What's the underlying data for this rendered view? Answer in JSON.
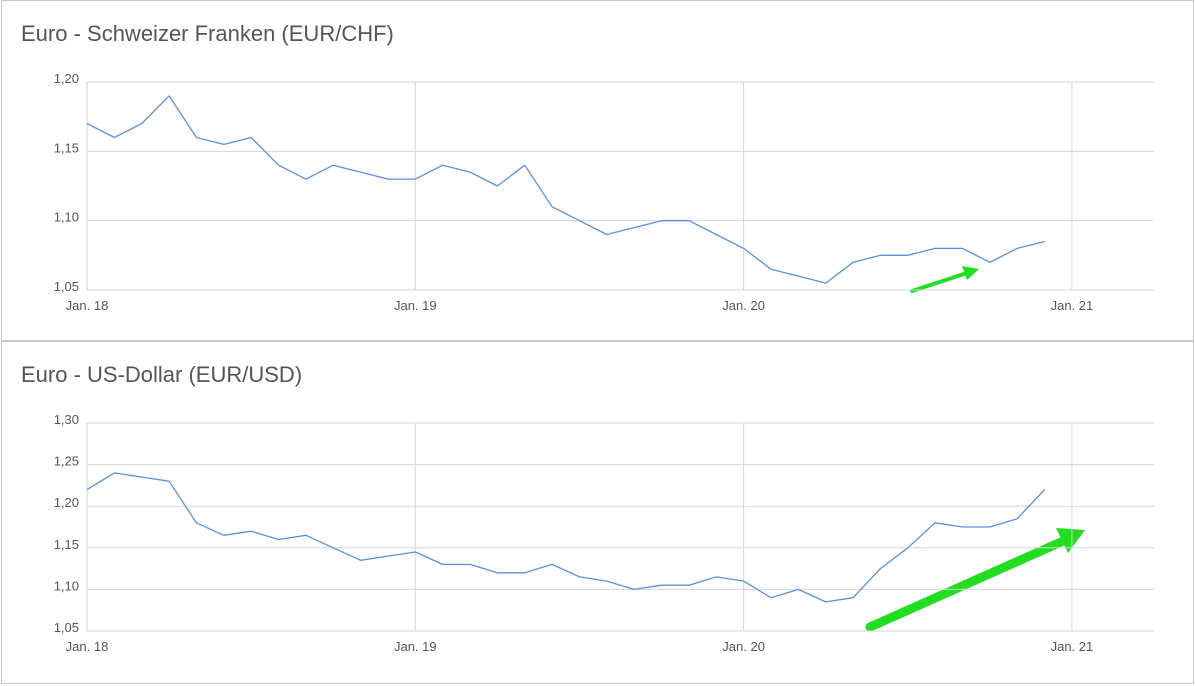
{
  "chart_data": [
    {
      "type": "line",
      "title": "Euro - Schweizer Franken (EUR/CHF)",
      "color": "#5b8fe0",
      "x": [
        "2018-01",
        "2018-02",
        "2018-03",
        "2018-04",
        "2018-05",
        "2018-06",
        "2018-07",
        "2018-08",
        "2018-09",
        "2018-10",
        "2018-11",
        "2018-12",
        "2019-01",
        "2019-02",
        "2019-03",
        "2019-04",
        "2019-05",
        "2019-06",
        "2019-07",
        "2019-08",
        "2019-09",
        "2019-10",
        "2019-11",
        "2019-12",
        "2020-01",
        "2020-02",
        "2020-03",
        "2020-04",
        "2020-05",
        "2020-06",
        "2020-07",
        "2020-08",
        "2020-09",
        "2020-10",
        "2020-11",
        "2020-12"
      ],
      "values": [
        1.17,
        1.16,
        1.17,
        1.19,
        1.16,
        1.155,
        1.16,
        1.14,
        1.13,
        1.14,
        1.135,
        1.13,
        1.13,
        1.14,
        1.135,
        1.125,
        1.14,
        1.11,
        1.1,
        1.09,
        1.095,
        1.1,
        1.1,
        1.09,
        1.08,
        1.065,
        1.06,
        1.055,
        1.07,
        1.075,
        1.075,
        1.08,
        1.08,
        1.07,
        1.08,
        1.085
      ],
      "xlim": [
        "2018-01",
        "2021-04"
      ],
      "xticks": [
        {
          "value": "2018-01",
          "label": "Jan. 18"
        },
        {
          "value": "2019-01",
          "label": "Jan. 19"
        },
        {
          "value": "2020-01",
          "label": "Jan. 20"
        },
        {
          "value": "2021-01",
          "label": "Jan. 21"
        }
      ],
      "ylim": [
        1.05,
        1.2
      ],
      "yticks": [
        {
          "value": 1.05,
          "label": "1,05"
        },
        {
          "value": 1.1,
          "label": "1,10"
        },
        {
          "value": 1.15,
          "label": "1,15"
        },
        {
          "value": 1.2,
          "label": "1,20"
        }
      ],
      "grid": true
    },
    {
      "type": "line",
      "title": "Euro - US-Dollar (EUR/USD)",
      "color": "#5b8fe0",
      "x": [
        "2018-01",
        "2018-02",
        "2018-03",
        "2018-04",
        "2018-05",
        "2018-06",
        "2018-07",
        "2018-08",
        "2018-09",
        "2018-10",
        "2018-11",
        "2018-12",
        "2019-01",
        "2019-02",
        "2019-03",
        "2019-04",
        "2019-05",
        "2019-06",
        "2019-07",
        "2019-08",
        "2019-09",
        "2019-10",
        "2019-11",
        "2019-12",
        "2020-01",
        "2020-02",
        "2020-03",
        "2020-04",
        "2020-05",
        "2020-06",
        "2020-07",
        "2020-08",
        "2020-09",
        "2020-10",
        "2020-11",
        "2020-12"
      ],
      "values": [
        1.22,
        1.24,
        1.235,
        1.23,
        1.18,
        1.165,
        1.17,
        1.16,
        1.165,
        1.15,
        1.135,
        1.14,
        1.145,
        1.13,
        1.13,
        1.12,
        1.12,
        1.13,
        1.115,
        1.11,
        1.1,
        1.105,
        1.105,
        1.115,
        1.11,
        1.09,
        1.1,
        1.085,
        1.09,
        1.125,
        1.15,
        1.18,
        1.175,
        1.175,
        1.185,
        1.22
      ],
      "xlim": [
        "2018-01",
        "2021-04"
      ],
      "xticks": [
        {
          "value": "2018-01",
          "label": "Jan. 18"
        },
        {
          "value": "2019-01",
          "label": "Jan. 19"
        },
        {
          "value": "2020-01",
          "label": "Jan. 20"
        },
        {
          "value": "2021-01",
          "label": "Jan. 21"
        }
      ],
      "ylim": [
        1.05,
        1.3
      ],
      "yticks": [
        {
          "value": 1.05,
          "label": "1,05"
        },
        {
          "value": 1.1,
          "label": "1,10"
        },
        {
          "value": 1.15,
          "label": "1,15"
        },
        {
          "value": 1.2,
          "label": "1,20"
        },
        {
          "value": 1.25,
          "label": "1,25"
        },
        {
          "value": 1.3,
          "label": "1,30"
        }
      ],
      "grid": true
    }
  ]
}
